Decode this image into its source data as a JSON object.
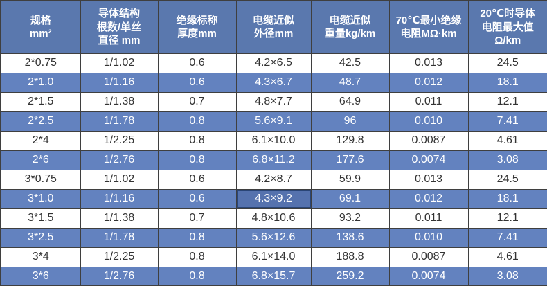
{
  "table": {
    "title": "cable-specification-table",
    "columns": [
      "规格\nmm²",
      "导体结构\n根数/单丝\n直径 mm",
      "绝缘标称\n厚度mm",
      "电缆近似\n外径mm",
      "电缆近似\n重量kg/km",
      "70℃最小绝缘\n电阻MΩ·km",
      "20℃时导体\n电阻最大值\nΩ/km"
    ],
    "rows": [
      [
        "2*0.75",
        "1/1.02",
        "0.6",
        "4.2×6.5",
        "42.5",
        "0.013",
        "24.5"
      ],
      [
        "2*1.0",
        "1/1.16",
        "0.6",
        "4.3×6.7",
        "48.7",
        "0.012",
        "18.1"
      ],
      [
        "2*1.5",
        "1/1.38",
        "0.7",
        "4.8×7.7",
        "64.9",
        "0.011",
        "12.1"
      ],
      [
        "2*2.5",
        "1/1.78",
        "0.8",
        "5.6×9.1",
        "96",
        "0.010",
        "7.41"
      ],
      [
        "2*4",
        "1/2.25",
        "0.8",
        "6.1×10.0",
        "129.8",
        "0.0087",
        "4.61"
      ],
      [
        "2*6",
        "1/2.76",
        "0.8",
        "6.8×11.2",
        "177.6",
        "0.0074",
        "3.08"
      ],
      [
        "3*0.75",
        "1/1.02",
        "0.6",
        "4.2×8.7",
        "59.9",
        "0.013",
        "24.5"
      ],
      [
        "3*1.0",
        "1/1.16",
        "0.6",
        "4.3×9.2",
        "69.1",
        "0.012",
        "18.1"
      ],
      [
        "3*1.5",
        "1/1.38",
        "0.7",
        "4.8×10.6",
        "93.2",
        "0.011",
        "12.1"
      ],
      [
        "3*2.5",
        "1/1.78",
        "0.8",
        "5.6×12.6",
        "138.6",
        "0.010",
        "7.41"
      ],
      [
        "3*4",
        "1/2.25",
        "0.8",
        "6.1×14.0",
        "188.8",
        "0.0087",
        "4.61"
      ],
      [
        "3*6",
        "1/2.76",
        "0.8",
        "6.8×15.7",
        "259.2",
        "0.0074",
        "3.08"
      ]
    ],
    "banded_row_indices": [
      1,
      3,
      5,
      7,
      9,
      11
    ],
    "highlighted_cell": {
      "row": 7,
      "col": 3
    },
    "colors": {
      "header_bg": "#5a78ae",
      "band_bg": "#6382bf",
      "row_bg": "#ffffff",
      "highlight_bg": "#5572ae",
      "highlight_border": "#2a4576",
      "border": "#3f3f3f",
      "text_dark": "#333333",
      "text_light": "#ffffff"
    }
  }
}
